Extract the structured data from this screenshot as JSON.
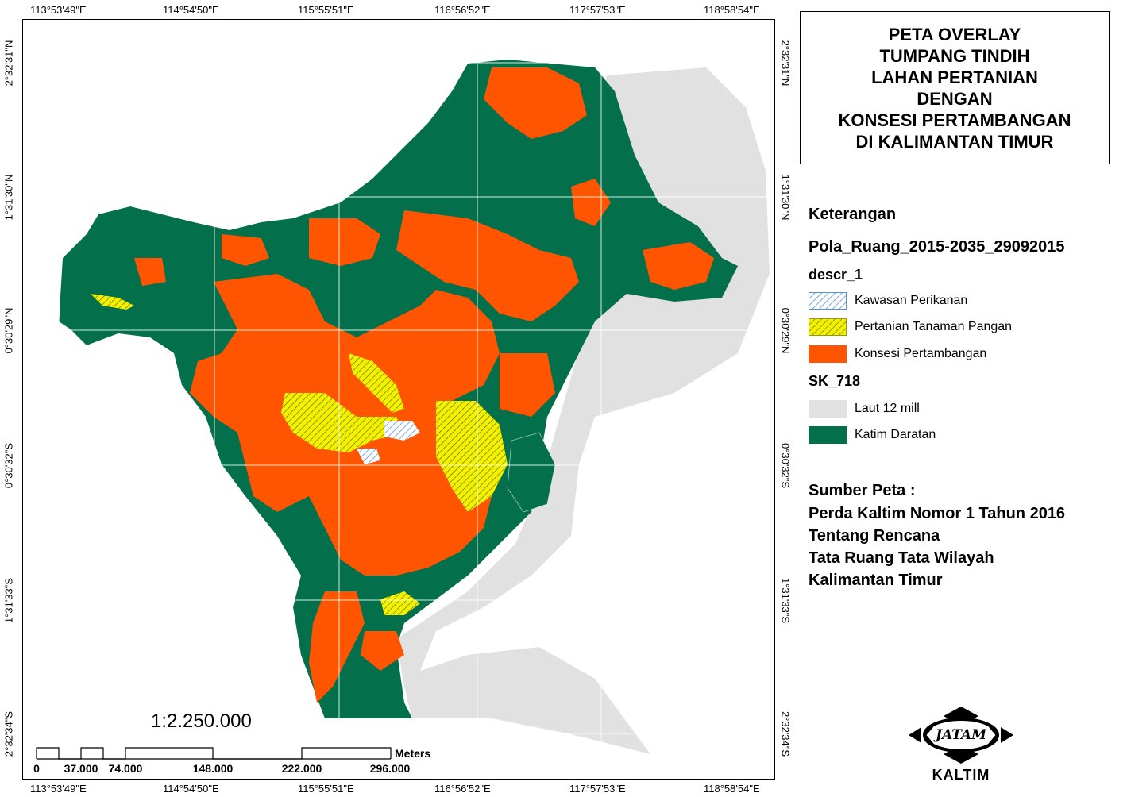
{
  "title_lines": [
    "PETA OVERLAY",
    "TUMPANG TINDIH",
    "LAHAN PERTANIAN",
    "DENGAN",
    "KONSESI PERTAMBANGAN",
    "DI KALIMANTAN TIMUR"
  ],
  "legend": {
    "heading": "Keterangan",
    "layer1_name": "Pola_Ruang_2015-2035_29092015",
    "layer1_field": "descr_1",
    "layer1_items": [
      {
        "label": "Kawasan Perikanan",
        "color": "#6fa3d8",
        "pattern": "hatch"
      },
      {
        "label": "Pertanian Tanaman Pangan",
        "color": "#f2f200",
        "pattern": "hatch"
      },
      {
        "label": "Konsesi Pertambangan",
        "color": "#ff5500",
        "pattern": "solid"
      }
    ],
    "layer2_name": "SK_718",
    "layer2_items": [
      {
        "label": "Laut 12 mill",
        "color": "#e1e1e1",
        "pattern": "solid"
      },
      {
        "label": "Katim Daratan",
        "color": "#04704b",
        "pattern": "solid"
      }
    ]
  },
  "source": {
    "heading": "Sumber Peta :",
    "lines": [
      "Perda Kaltim Nomor 1 Tahun 2016",
      "Tentang Rencana",
      "Tata Ruang Tata Wilayah",
      "Kalimantan Timur"
    ]
  },
  "coords": {
    "longitudes": [
      "113°53'49\"E",
      "114°54'50\"E",
      "115°55'51\"E",
      "116°56'52\"E",
      "117°57'53\"E",
      "118°58'54\"E"
    ],
    "latitudes": [
      "2°32'31\"N",
      "1°31'30\"N",
      "0°30'29\"N",
      "0°30'32\"S",
      "1°31'33\"S",
      "2°32'34\"S"
    ]
  },
  "scale": {
    "ratio": "1:2.250.000",
    "unit": "Meters",
    "labels": [
      "0",
      "37.000",
      "74.000",
      "148.000",
      "222.000",
      "296.000"
    ]
  },
  "logo": {
    "text_top": "JATAM",
    "text_bottom": "KALTIM"
  }
}
